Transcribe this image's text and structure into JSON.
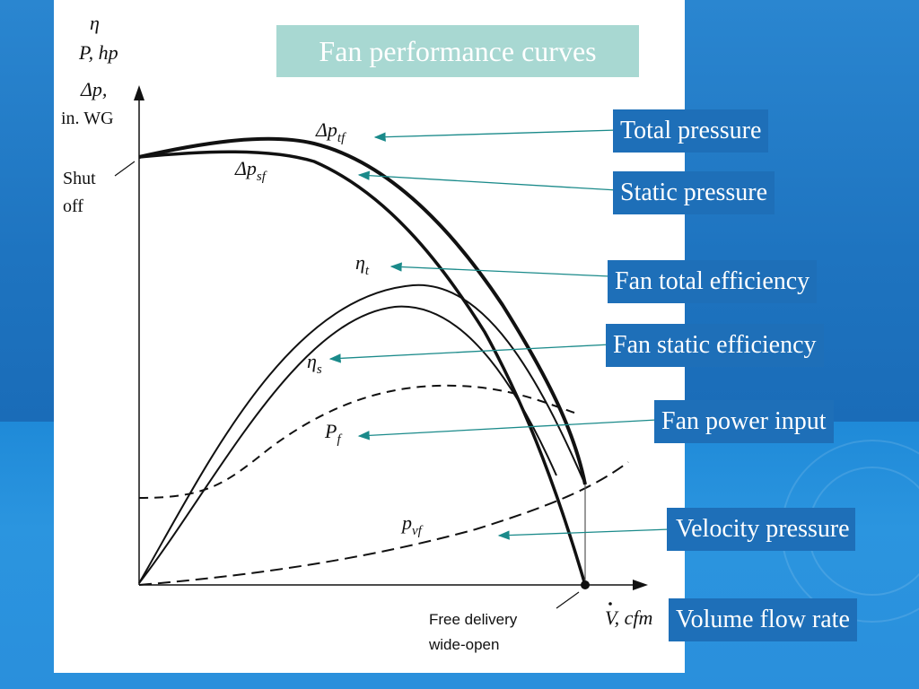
{
  "slide": {
    "title": "Fan performance curves",
    "callouts": {
      "total_pressure": "Total pressure",
      "static_pressure": "Static pressure",
      "fan_total_efficiency": "Fan total efficiency",
      "fan_static_efficiency": "Fan static efficiency",
      "fan_power_input": "Fan power input",
      "velocity_pressure": "Velocity pressure",
      "volume_flow_rate": "Volume flow rate"
    }
  },
  "diagram": {
    "y_axis_labels": [
      "η",
      "P, hp",
      "Δp,",
      "in. WG"
    ],
    "shut_off_label": [
      "Shut",
      "off"
    ],
    "curve_labels": {
      "total_pressure": "Δp",
      "total_pressure_sub": "tf",
      "static_pressure": "Δp",
      "static_pressure_sub": "sf",
      "total_efficiency": "η",
      "total_efficiency_sub": "t",
      "static_efficiency": "η",
      "static_efficiency_sub": "s",
      "power": "P",
      "power_sub": "f",
      "velocity_pressure": "p",
      "velocity_pressure_sub": "vf"
    },
    "free_delivery_label": [
      "Free delivery",
      "wide-open"
    ],
    "x_axis_label": "V, cfm"
  },
  "colors": {
    "slide_background": "#1f77c2",
    "title_box": "#a8d8d2",
    "callout_box": "#1e6fb8",
    "arrow": "#1a8a8a"
  }
}
